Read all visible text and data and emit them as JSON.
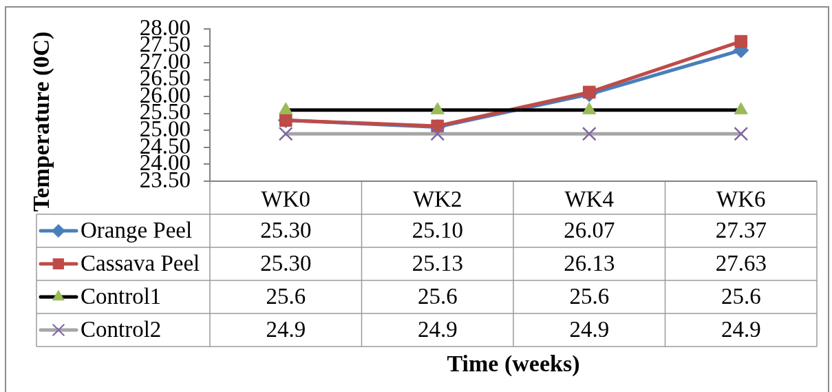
{
  "chart_data": {
    "type": "line",
    "ylabel": "Temperature (0C)",
    "annotations": [
      "Time (weeks)"
    ],
    "categories": [
      "WK0",
      "WK2",
      "WK4",
      "WK6"
    ],
    "series": [
      {
        "name": "Orange Peel",
        "color": "#4a7ebb",
        "marker": "diamond",
        "values": [
          25.3,
          25.1,
          26.07,
          27.37
        ],
        "value_labels": [
          "25.30",
          "25.10",
          "26.07",
          "27.37"
        ]
      },
      {
        "name": "Cassava Peel",
        "color": "#be4b48",
        "marker": "square",
        "values": [
          25.3,
          25.13,
          26.13,
          27.63
        ],
        "value_labels": [
          "25.30",
          "25.13",
          "26.13",
          "27.63"
        ]
      },
      {
        "name": "Control1",
        "color": "#000000",
        "colors": [
          "#9bbb59",
          "#9bbb59",
          "#9bbb59",
          "#9bbb59"
        ],
        "marker": "triangle",
        "values": [
          25.6,
          25.6,
          25.6,
          25.6
        ],
        "value_labels": [
          "25.6",
          "25.6",
          "25.6",
          "25.6"
        ]
      },
      {
        "name": "Control2",
        "color": "#a6a6a6",
        "colors": [
          "#8064a2",
          "#8064a2",
          "#8064a2",
          "#8064a2"
        ],
        "marker": "cross",
        "values": [
          24.9,
          24.9,
          24.9,
          24.9
        ],
        "value_labels": [
          "24.9",
          "24.9",
          "24.9",
          "24.9"
        ]
      }
    ],
    "ylim": [
      23.5,
      28
    ],
    "yticks": [
      {
        "value": 23.5,
        "label": "23.50"
      },
      {
        "value": 24,
        "label": "24.00"
      },
      {
        "value": 24.5,
        "label": "24.50"
      },
      {
        "value": 25,
        "label": "25.00"
      },
      {
        "value": 25.5,
        "label": "25.50"
      },
      {
        "value": 26,
        "label": "26.00"
      },
      {
        "value": 26.5,
        "label": "26.50"
      },
      {
        "value": 27,
        "label": "27.00"
      },
      {
        "value": 27.5,
        "label": "27.50"
      },
      {
        "value": 28,
        "label": "28.00"
      }
    ],
    "legend": "bottom"
  }
}
